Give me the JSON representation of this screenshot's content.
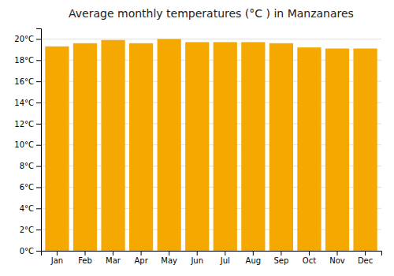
{
  "chart_data": {
    "type": "bar",
    "title": "Average monthly temperatures (°C ) in Manzanares",
    "categories": [
      "Jan",
      "Feb",
      "Mar",
      "Apr",
      "May",
      "Jun",
      "Jul",
      "Aug",
      "Sep",
      "Oct",
      "Nov",
      "Dec"
    ],
    "values": [
      19.3,
      19.6,
      19.9,
      19.6,
      20.0,
      19.7,
      19.7,
      19.7,
      19.6,
      19.2,
      19.1,
      19.1
    ],
    "color": "#F5A800",
    "ylim": [
      0,
      21
    ],
    "yticks": [
      {
        "value": 0,
        "label": "0°C"
      },
      {
        "value": 2,
        "label": "2°C"
      },
      {
        "value": 4,
        "label": "4°C"
      },
      {
        "value": 6,
        "label": "6°C"
      },
      {
        "value": 8,
        "label": "8°C"
      },
      {
        "value": 10,
        "label": "10°C"
      },
      {
        "value": 12,
        "label": "12°C"
      },
      {
        "value": 14,
        "label": "14°C"
      },
      {
        "value": 16,
        "label": "16°C"
      },
      {
        "value": 18,
        "label": "18°C"
      },
      {
        "value": 20,
        "label": "20°C"
      }
    ],
    "grid": true
  }
}
